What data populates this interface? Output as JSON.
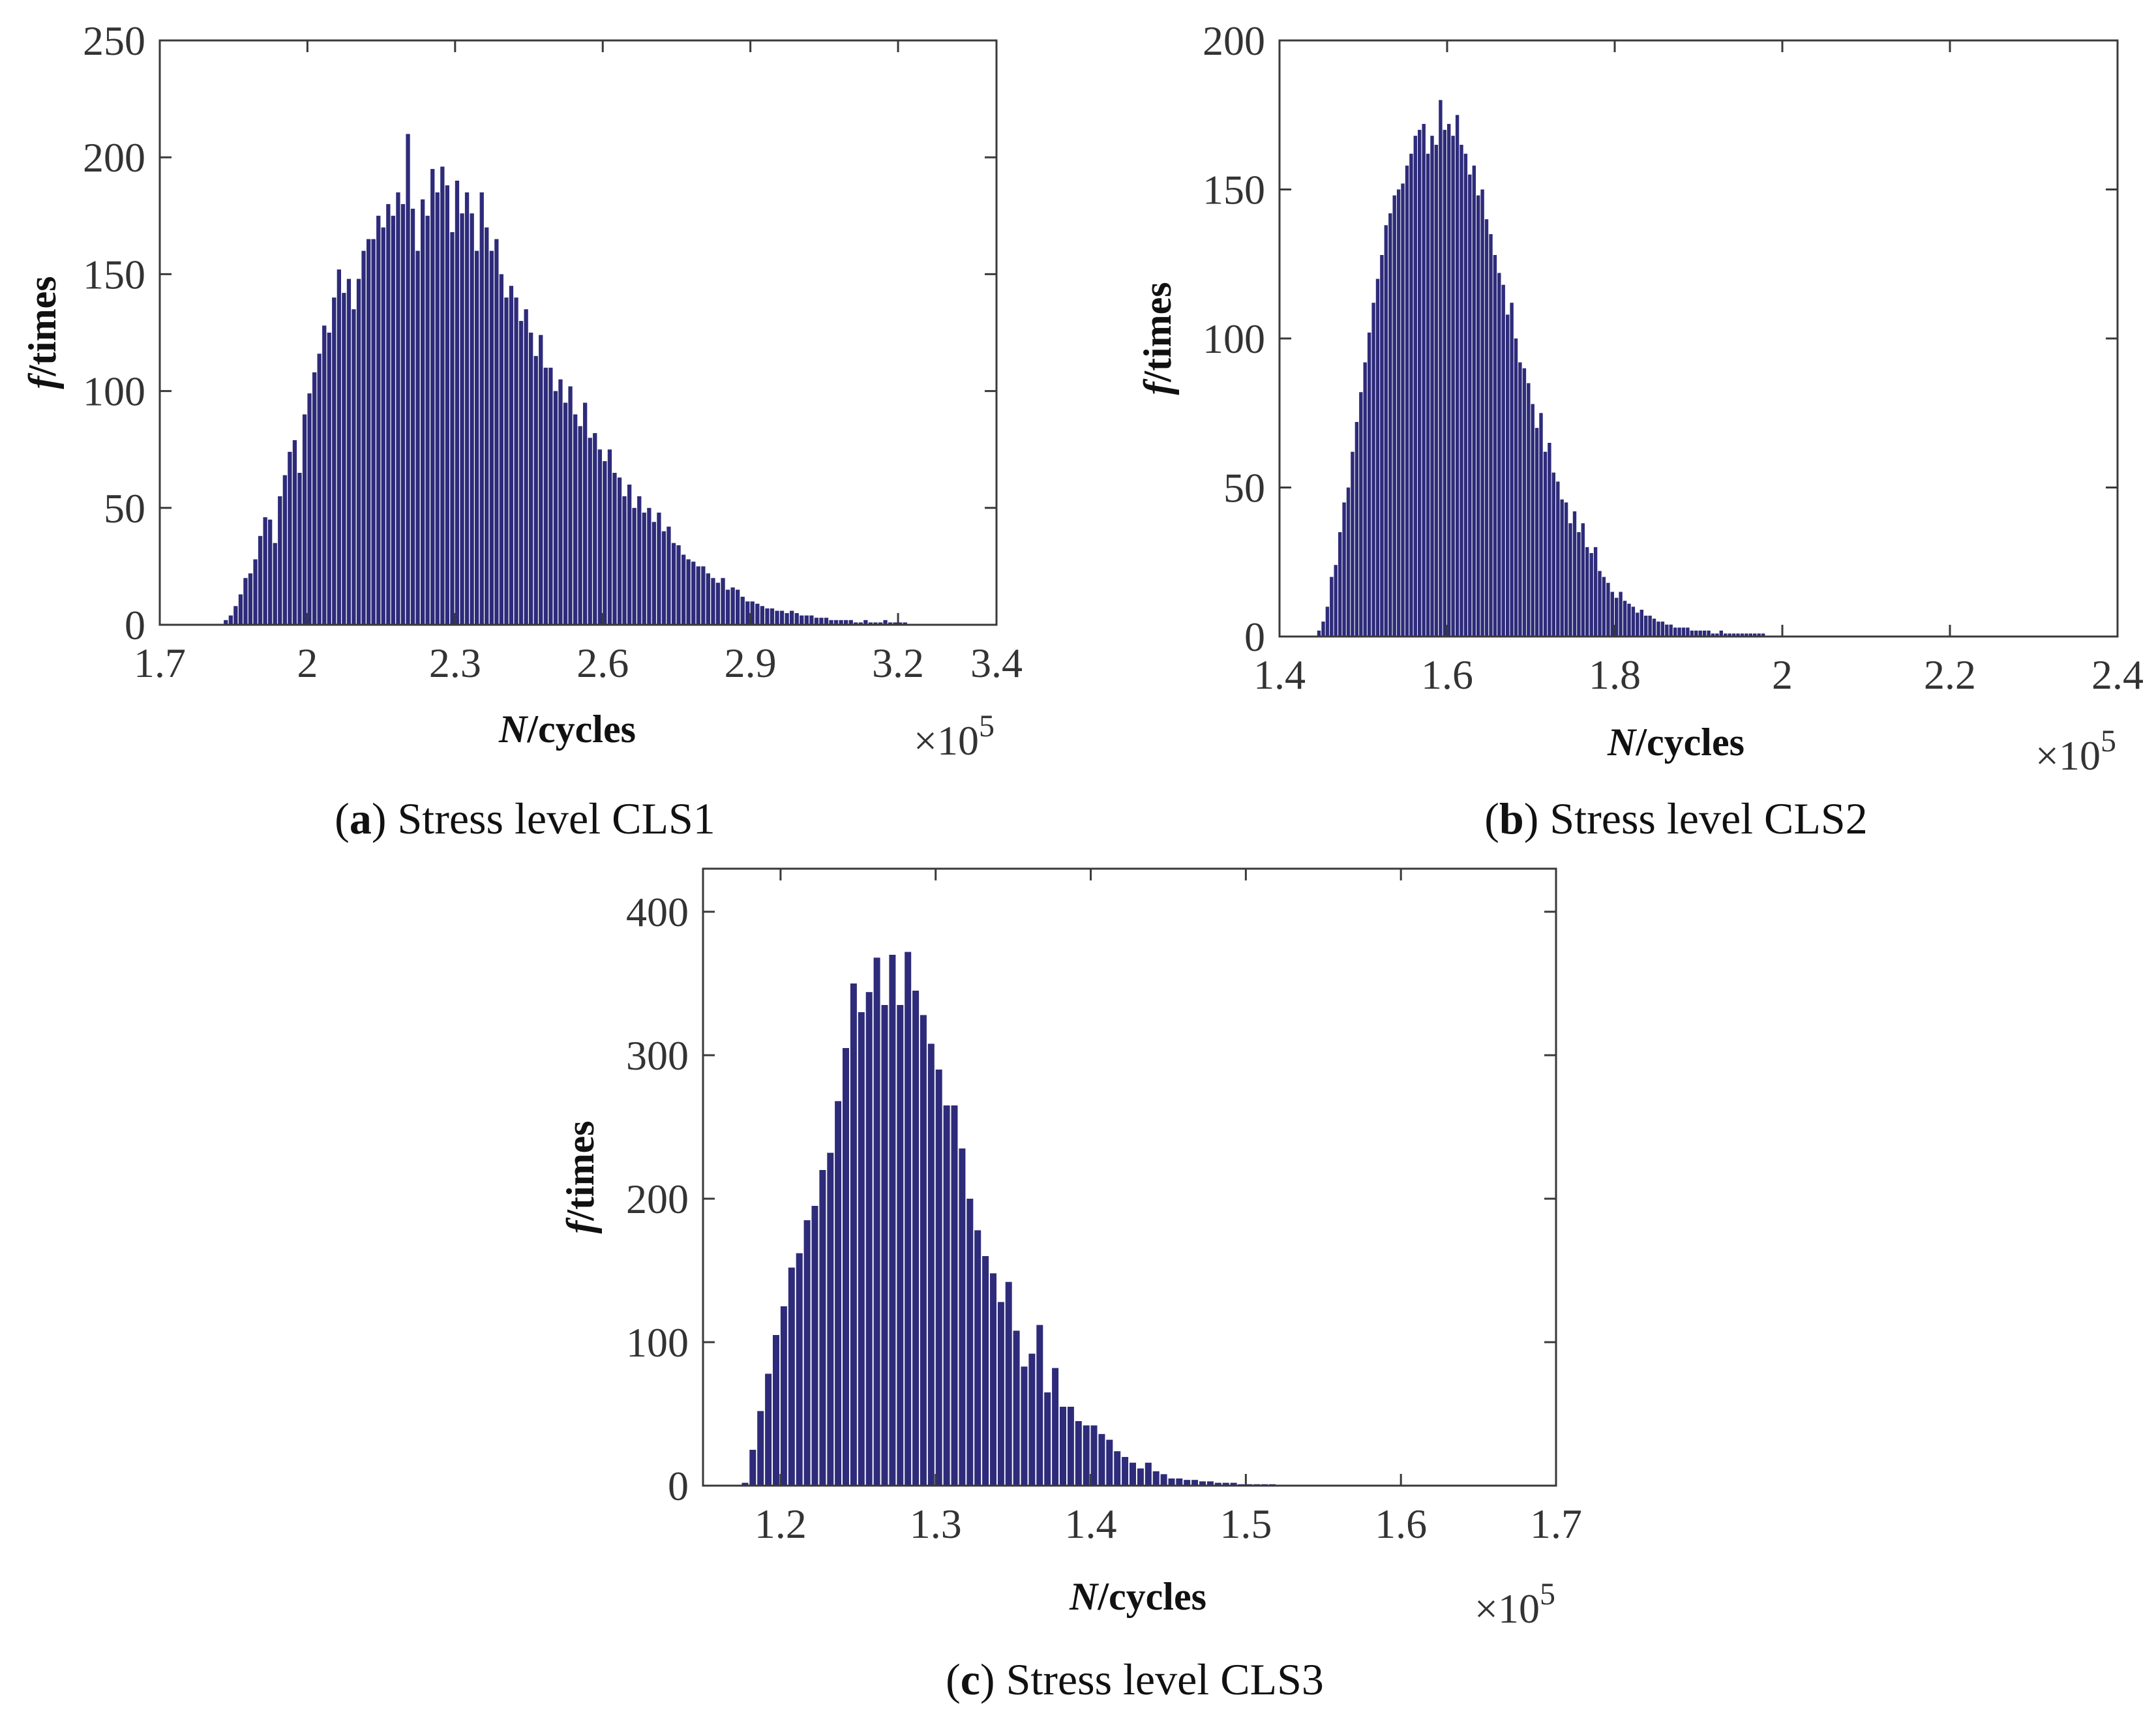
{
  "colors": {
    "bar": "#2e2b7a",
    "axis": "#3a3a3a",
    "text": "#333333"
  },
  "chart_data": [
    {
      "id": "a",
      "type": "bar",
      "caption_letter": "a",
      "caption_text": "Stress level CLS1",
      "xlabel_var": "N",
      "xlabel_unit": "/cycles",
      "ylabel_var": "f",
      "ylabel_unit": "/times",
      "x_multiplier": "×10",
      "x_multiplier_exp": "5",
      "xlim": [
        1.7,
        3.4
      ],
      "ylim": [
        0,
        250
      ],
      "xticks": [
        "1.7",
        "2",
        "2.3",
        "2.6",
        "2.9",
        "3.2",
        "3.4"
      ],
      "yticks": [
        "0",
        "50",
        "100",
        "150",
        "200",
        "250"
      ],
      "bin_start": 1.83,
      "bin_width": 0.01,
      "values": [
        2,
        4,
        8,
        13,
        20,
        22,
        28,
        38,
        46,
        45,
        35,
        55,
        64,
        74,
        79,
        65,
        90,
        99,
        108,
        116,
        128,
        125,
        140,
        152,
        142,
        148,
        135,
        148,
        160,
        165,
        165,
        175,
        170,
        180,
        175,
        185,
        180,
        210,
        178,
        160,
        182,
        175,
        195,
        185,
        196,
        188,
        168,
        190,
        176,
        185,
        176,
        160,
        185,
        170,
        160,
        165,
        150,
        140,
        145,
        140,
        130,
        135,
        125,
        115,
        124,
        110,
        110,
        100,
        105,
        95,
        102,
        90,
        85,
        95,
        80,
        82,
        75,
        70,
        75,
        65,
        63,
        55,
        60,
        50,
        55,
        48,
        50,
        44,
        48,
        40,
        42,
        35,
        34,
        30,
        28,
        27,
        25,
        25,
        22,
        20,
        18,
        20,
        15,
        16,
        15,
        12,
        10,
        10,
        9,
        8,
        7,
        7,
        6,
        6,
        5,
        6,
        5,
        4,
        4,
        4,
        3,
        3,
        3,
        2,
        2,
        2,
        2,
        2,
        1,
        1,
        2,
        1,
        1,
        1,
        2,
        1,
        1,
        1,
        1
      ]
    },
    {
      "id": "b",
      "type": "bar",
      "caption_letter": "b",
      "caption_text": "Stress level CLS2",
      "xlabel_var": "N",
      "xlabel_unit": "/cycles",
      "ylabel_var": "f",
      "ylabel_unit": "/times",
      "x_multiplier": "×10",
      "x_multiplier_exp": "5",
      "xlim": [
        1.4,
        2.4
      ],
      "ylim": [
        0,
        200
      ],
      "xticks": [
        "1.4",
        "1.6",
        "1.8",
        "2",
        "2.2",
        "2.4"
      ],
      "yticks": [
        "0",
        "50",
        "100",
        "150",
        "200"
      ],
      "bin_start": 1.445,
      "bin_width": 0.005,
      "values": [
        2,
        5,
        10,
        20,
        24,
        35,
        45,
        50,
        62,
        72,
        82,
        92,
        102,
        112,
        120,
        128,
        138,
        142,
        148,
        150,
        152,
        158,
        162,
        168,
        170,
        172,
        162,
        168,
        165,
        180,
        170,
        172,
        168,
        175,
        165,
        162,
        155,
        158,
        148,
        150,
        140,
        135,
        128,
        122,
        118,
        108,
        112,
        100,
        92,
        90,
        85,
        78,
        70,
        75,
        62,
        65,
        55,
        52,
        46,
        45,
        38,
        42,
        35,
        38,
        30,
        28,
        30,
        22,
        20,
        18,
        15,
        13,
        15,
        12,
        11,
        10,
        8,
        9,
        7,
        7,
        6,
        5,
        5,
        4,
        4,
        3,
        3,
        3,
        3,
        2,
        2,
        2,
        2,
        2,
        1,
        1,
        2,
        1,
        1,
        1,
        1,
        1,
        1,
        1,
        1,
        1,
        1
      ]
    },
    {
      "id": "c",
      "type": "bar",
      "caption_letter": "c",
      "caption_text": "Stress level CLS3",
      "xlabel_var": "N",
      "xlabel_unit": "/cycles",
      "ylabel_var": "f",
      "ylabel_unit": "/times",
      "x_multiplier": "×10",
      "x_multiplier_exp": "5",
      "xlim": [
        1.15,
        1.7
      ],
      "ylim": [
        0,
        430
      ],
      "xticks": [
        "1.2",
        "1.3",
        "1.4",
        "1.5",
        "1.6",
        "1.7"
      ],
      "yticks": [
        "0",
        "100",
        "200",
        "300",
        "400"
      ],
      "bin_start": 1.175,
      "bin_width": 0.005,
      "values": [
        2,
        25,
        52,
        78,
        105,
        125,
        152,
        162,
        185,
        195,
        220,
        232,
        268,
        305,
        350,
        330,
        344,
        368,
        335,
        370,
        335,
        372,
        345,
        328,
        308,
        290,
        265,
        265,
        235,
        200,
        178,
        160,
        148,
        128,
        142,
        108,
        83,
        92,
        112,
        65,
        82,
        55,
        55,
        45,
        42,
        42,
        36,
        32,
        24,
        20,
        16,
        12,
        16,
        10,
        8,
        5,
        5,
        4,
        4,
        3,
        3,
        2,
        2,
        2,
        1,
        1,
        1,
        1,
        1
      ]
    }
  ]
}
